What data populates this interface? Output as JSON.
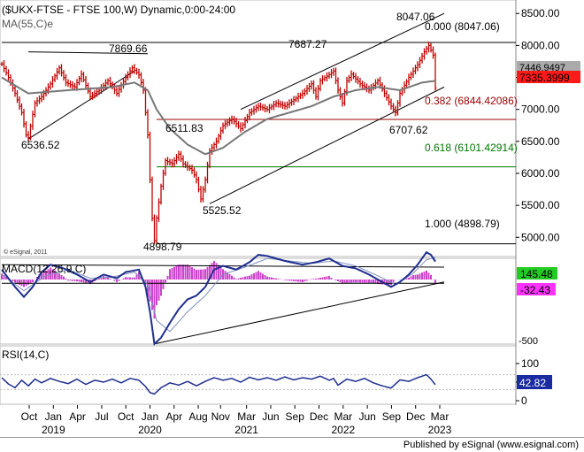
{
  "colors": {
    "price": "#c00000",
    "ma": "#777777",
    "macd": "#1f2f8f",
    "signal": "#7f8fbf",
    "hist": "#cc44cc",
    "rsi": "#1f2f8f",
    "fib_red": "#990000",
    "fib_green": "#007700",
    "trend": "#000000",
    "label_price_bg": "#ff1a1a",
    "label_macd_bg": "#22cc22",
    "label_hist_bg": "#ff33ff",
    "label_rsi_bg": "#1a2aa0",
    "label_ma_bg": "#aaaaaa"
  },
  "chart_data": [
    {
      "type": "candlestick",
      "title": "($UKX-FTSE - FTSE 100,W) Dynamic,0:00-24:00",
      "indicator_label": "MA(55,C)e",
      "watermark": "© eSignal, 2011",
      "ylim": [
        4700,
        8600
      ],
      "yticks": [
        5000,
        5500,
        6000,
        6500,
        7000,
        7500,
        8000,
        8500
      ],
      "ytick_labels": [
        "5000.00",
        "5500.00",
        "6000.00",
        "6500.00",
        "7000.00",
        "7500.00",
        "8000.00",
        "8500.00"
      ],
      "current_price": "7335.3999",
      "current_ma": "7446.9497",
      "swing_labels": [
        "7869.66",
        "6536.52",
        "7687.27",
        "8047.06",
        "6511.83",
        "5525.52",
        "4898.79",
        "6707.62"
      ],
      "fib_levels": [
        {
          "label": "0.000 (8047.06)",
          "value": 8047.06
        },
        {
          "label": "0.382 (6844.42086)",
          "value": 6844.42
        },
        {
          "label": "0.618 (6101.42914)",
          "value": 6101.43
        },
        {
          "label": "1.000 (4898.79)",
          "value": 4898.79
        }
      ],
      "anchors": [
        {
          "t": 0,
          "v": 7710
        },
        {
          "t": 3,
          "v": 7500
        },
        {
          "t": 6,
          "v": 7250
        },
        {
          "t": 9,
          "v": 6950
        },
        {
          "t": 11,
          "v": 6600
        },
        {
          "t": 12,
          "v": 6560
        },
        {
          "t": 15,
          "v": 7100
        },
        {
          "t": 18,
          "v": 7200
        },
        {
          "t": 22,
          "v": 7400
        },
        {
          "t": 26,
          "v": 7650
        },
        {
          "t": 29,
          "v": 7420
        },
        {
          "t": 33,
          "v": 7350
        },
        {
          "t": 36,
          "v": 7550
        },
        {
          "t": 40,
          "v": 7200
        },
        {
          "t": 44,
          "v": 7300
        },
        {
          "t": 48,
          "v": 7450
        },
        {
          "t": 52,
          "v": 7250
        },
        {
          "t": 56,
          "v": 7500
        },
        {
          "t": 59,
          "v": 7650
        },
        {
          "t": 62,
          "v": 7540
        },
        {
          "t": 64,
          "v": 7300
        },
        {
          "t": 66,
          "v": 6600
        },
        {
          "t": 67,
          "v": 5900
        },
        {
          "t": 68,
          "v": 5300
        },
        {
          "t": 69,
          "v": 4950
        },
        {
          "t": 70,
          "v": 5300
        },
        {
          "t": 72,
          "v": 5800
        },
        {
          "t": 74,
          "v": 6200
        },
        {
          "t": 77,
          "v": 6150
        },
        {
          "t": 80,
          "v": 6300
        },
        {
          "t": 82,
          "v": 6150
        },
        {
          "t": 86,
          "v": 6050
        },
        {
          "t": 88,
          "v": 5900
        },
        {
          "t": 90,
          "v": 5600
        },
        {
          "t": 92,
          "v": 5900
        },
        {
          "t": 94,
          "v": 6350
        },
        {
          "t": 97,
          "v": 6500
        },
        {
          "t": 100,
          "v": 6750
        },
        {
          "t": 104,
          "v": 6850
        },
        {
          "t": 108,
          "v": 6700
        },
        {
          "t": 112,
          "v": 6950
        },
        {
          "t": 116,
          "v": 7050
        },
        {
          "t": 120,
          "v": 7000
        },
        {
          "t": 124,
          "v": 7100
        },
        {
          "t": 128,
          "v": 7050
        },
        {
          "t": 132,
          "v": 7150
        },
        {
          "t": 136,
          "v": 7250
        },
        {
          "t": 140,
          "v": 7400
        },
        {
          "t": 142,
          "v": 7200
        },
        {
          "t": 144,
          "v": 7450
        },
        {
          "t": 147,
          "v": 7520
        },
        {
          "t": 150,
          "v": 7600
        },
        {
          "t": 152,
          "v": 7300
        },
        {
          "t": 154,
          "v": 7100
        },
        {
          "t": 156,
          "v": 7450
        },
        {
          "t": 158,
          "v": 7550
        },
        {
          "t": 162,
          "v": 7400
        },
        {
          "t": 166,
          "v": 7300
        },
        {
          "t": 170,
          "v": 7450
        },
        {
          "t": 173,
          "v": 7250
        },
        {
          "t": 176,
          "v": 7050
        },
        {
          "t": 178,
          "v": 6950
        },
        {
          "t": 180,
          "v": 7250
        },
        {
          "t": 184,
          "v": 7500
        },
        {
          "t": 188,
          "v": 7700
        },
        {
          "t": 191,
          "v": 7900
        },
        {
          "t": 193,
          "v": 8000
        },
        {
          "t": 195,
          "v": 7850
        },
        {
          "t": 196,
          "v": 7335
        }
      ],
      "ma_points": [
        {
          "t": 0,
          "v": 7500
        },
        {
          "t": 12,
          "v": 7250
        },
        {
          "t": 30,
          "v": 7300
        },
        {
          "t": 50,
          "v": 7350
        },
        {
          "t": 60,
          "v": 7420
        },
        {
          "t": 66,
          "v": 7300
        },
        {
          "t": 70,
          "v": 7000
        },
        {
          "t": 76,
          "v": 6700
        },
        {
          "t": 84,
          "v": 6450
        },
        {
          "t": 92,
          "v": 6300
        },
        {
          "t": 100,
          "v": 6400
        },
        {
          "t": 110,
          "v": 6650
        },
        {
          "t": 120,
          "v": 6850
        },
        {
          "t": 130,
          "v": 6950
        },
        {
          "t": 140,
          "v": 7050
        },
        {
          "t": 150,
          "v": 7200
        },
        {
          "t": 160,
          "v": 7300
        },
        {
          "t": 170,
          "v": 7350
        },
        {
          "t": 180,
          "v": 7300
        },
        {
          "t": 190,
          "v": 7420
        },
        {
          "t": 196,
          "v": 7447
        }
      ],
      "trendlines": [
        {
          "t1": 12,
          "v1": 6536.52,
          "t2": 60,
          "v2": 7600
        },
        {
          "t1": 12,
          "v1": 7900,
          "t2": 66,
          "v2": 7870
        },
        {
          "t1": 94,
          "v1": 5525,
          "t2": 200,
          "v2": 7350
        },
        {
          "t1": 108,
          "v1": 7000,
          "t2": 200,
          "v2": 8500
        },
        {
          "t1": 0,
          "v1": 8047.06,
          "t2": 200,
          "v2": 8047.06
        }
      ]
    },
    {
      "type": "line",
      "title": "MACD(12,26,9,C)",
      "current_macd": "145.48",
      "current_hist": "-32.43",
      "ytick_labels": [
        "-500"
      ],
      "macd_points": [
        {
          "t": 0,
          "v": 80
        },
        {
          "t": 6,
          "v": -60
        },
        {
          "t": 10,
          "v": -140
        },
        {
          "t": 14,
          "v": -60
        },
        {
          "t": 18,
          "v": 60
        },
        {
          "t": 22,
          "v": 120
        },
        {
          "t": 28,
          "v": 90
        },
        {
          "t": 34,
          "v": 40
        },
        {
          "t": 40,
          "v": -20
        },
        {
          "t": 46,
          "v": 40
        },
        {
          "t": 52,
          "v": 10
        },
        {
          "t": 56,
          "v": 60
        },
        {
          "t": 62,
          "v": 80
        },
        {
          "t": 65,
          "v": -60
        },
        {
          "t": 67,
          "v": -260
        },
        {
          "t": 69,
          "v": -520
        },
        {
          "t": 72,
          "v": -470
        },
        {
          "t": 76,
          "v": -350
        },
        {
          "t": 80,
          "v": -240
        },
        {
          "t": 84,
          "v": -160
        },
        {
          "t": 88,
          "v": -130
        },
        {
          "t": 92,
          "v": -60
        },
        {
          "t": 96,
          "v": 80
        },
        {
          "t": 100,
          "v": 110
        },
        {
          "t": 106,
          "v": 80
        },
        {
          "t": 112,
          "v": 140
        },
        {
          "t": 116,
          "v": 200
        },
        {
          "t": 120,
          "v": 190
        },
        {
          "t": 128,
          "v": 150
        },
        {
          "t": 136,
          "v": 120
        },
        {
          "t": 142,
          "v": 140
        },
        {
          "t": 148,
          "v": 170
        },
        {
          "t": 154,
          "v": 110
        },
        {
          "t": 160,
          "v": 90
        },
        {
          "t": 166,
          "v": 40
        },
        {
          "t": 172,
          "v": -20
        },
        {
          "t": 176,
          "v": -60
        },
        {
          "t": 180,
          "v": -20
        },
        {
          "t": 184,
          "v": 40
        },
        {
          "t": 188,
          "v": 120
        },
        {
          "t": 192,
          "v": 220
        },
        {
          "t": 194,
          "v": 200
        },
        {
          "t": 196,
          "v": 145
        }
      ],
      "signal_points": [
        {
          "t": 0,
          "v": 40
        },
        {
          "t": 10,
          "v": -90
        },
        {
          "t": 20,
          "v": 30
        },
        {
          "t": 30,
          "v": 80
        },
        {
          "t": 40,
          "v": 10
        },
        {
          "t": 50,
          "v": 20
        },
        {
          "t": 60,
          "v": 60
        },
        {
          "t": 66,
          "v": -40
        },
        {
          "t": 70,
          "v": -330
        },
        {
          "t": 76,
          "v": -420
        },
        {
          "t": 84,
          "v": -260
        },
        {
          "t": 92,
          "v": -130
        },
        {
          "t": 100,
          "v": 40
        },
        {
          "t": 110,
          "v": 100
        },
        {
          "t": 120,
          "v": 170
        },
        {
          "t": 130,
          "v": 150
        },
        {
          "t": 140,
          "v": 130
        },
        {
          "t": 150,
          "v": 150
        },
        {
          "t": 160,
          "v": 110
        },
        {
          "t": 170,
          "v": 30
        },
        {
          "t": 178,
          "v": -40
        },
        {
          "t": 186,
          "v": 50
        },
        {
          "t": 192,
          "v": 160
        },
        {
          "t": 196,
          "v": 178
        }
      ],
      "trendlines": [
        {
          "t1": 0,
          "v1": 120,
          "t2": 200,
          "v2": 100
        },
        {
          "t1": 69,
          "v1": -520,
          "t2": 200,
          "v2": -20
        },
        {
          "t1": 0,
          "v1": -30,
          "t2": 200,
          "v2": -30
        }
      ]
    },
    {
      "type": "line",
      "title": "RSI(14,C)",
      "current_rsi": "42.82",
      "ylim": [
        0,
        100
      ],
      "yticks": [
        0,
        50,
        100
      ],
      "ytick_labels": [
        "0",
        "50",
        "100"
      ],
      "rsi_points": [
        {
          "t": 0,
          "v": 62
        },
        {
          "t": 3,
          "v": 45
        },
        {
          "t": 6,
          "v": 35
        },
        {
          "t": 9,
          "v": 55
        },
        {
          "t": 12,
          "v": 40
        },
        {
          "t": 15,
          "v": 58
        },
        {
          "t": 18,
          "v": 48
        },
        {
          "t": 22,
          "v": 60
        },
        {
          "t": 26,
          "v": 52
        },
        {
          "t": 30,
          "v": 46
        },
        {
          "t": 34,
          "v": 58
        },
        {
          "t": 38,
          "v": 44
        },
        {
          "t": 42,
          "v": 55
        },
        {
          "t": 46,
          "v": 50
        },
        {
          "t": 50,
          "v": 58
        },
        {
          "t": 54,
          "v": 48
        },
        {
          "t": 58,
          "v": 60
        },
        {
          "t": 62,
          "v": 55
        },
        {
          "t": 65,
          "v": 38
        },
        {
          "t": 67,
          "v": 22
        },
        {
          "t": 69,
          "v": 18
        },
        {
          "t": 72,
          "v": 35
        },
        {
          "t": 76,
          "v": 48
        },
        {
          "t": 80,
          "v": 42
        },
        {
          "t": 84,
          "v": 52
        },
        {
          "t": 88,
          "v": 40
        },
        {
          "t": 92,
          "v": 52
        },
        {
          "t": 96,
          "v": 62
        },
        {
          "t": 100,
          "v": 55
        },
        {
          "t": 104,
          "v": 60
        },
        {
          "t": 108,
          "v": 50
        },
        {
          "t": 112,
          "v": 63
        },
        {
          "t": 116,
          "v": 56
        },
        {
          "t": 120,
          "v": 62
        },
        {
          "t": 124,
          "v": 55
        },
        {
          "t": 128,
          "v": 64
        },
        {
          "t": 132,
          "v": 56
        },
        {
          "t": 136,
          "v": 62
        },
        {
          "t": 140,
          "v": 58
        },
        {
          "t": 144,
          "v": 66
        },
        {
          "t": 148,
          "v": 55
        },
        {
          "t": 150,
          "v": 60
        },
        {
          "t": 152,
          "v": 42
        },
        {
          "t": 156,
          "v": 58
        },
        {
          "t": 160,
          "v": 52
        },
        {
          "t": 164,
          "v": 60
        },
        {
          "t": 168,
          "v": 48
        },
        {
          "t": 172,
          "v": 40
        },
        {
          "t": 176,
          "v": 34
        },
        {
          "t": 180,
          "v": 56
        },
        {
          "t": 184,
          "v": 52
        },
        {
          "t": 188,
          "v": 62
        },
        {
          "t": 192,
          "v": 70
        },
        {
          "t": 194,
          "v": 58
        },
        {
          "t": 196,
          "v": 43
        }
      ]
    }
  ],
  "x_axis": {
    "month_ticks": [
      {
        "t": 7,
        "label": "Oct"
      },
      {
        "t": 20,
        "label": "Jan"
      },
      {
        "t": 33,
        "label": "Apr"
      },
      {
        "t": 46,
        "label": "Jul"
      },
      {
        "t": 59,
        "label": "Oct"
      },
      {
        "t": 72,
        "label": "Jan"
      },
      {
        "t": 85,
        "label": "Apr"
      },
      {
        "t": 98,
        "label": "Aug"
      },
      {
        "t": 110,
        "label": "Nov"
      },
      {
        "t": 124,
        "label": "Mar"
      },
      {
        "t": 137,
        "label": "Jun"
      },
      {
        "t": 150,
        "label": "Sep"
      },
      {
        "t": 163,
        "label": "Dec"
      },
      {
        "t": 176,
        "label": "Mar"
      },
      {
        "t": 189,
        "label": "Jun"
      },
      {
        "t": 202,
        "label": "Sep"
      },
      {
        "t": 215,
        "label": "Dec"
      },
      {
        "t": 228,
        "label": "Mar"
      }
    ],
    "year_ticks": [
      {
        "t": 20,
        "label": "2019"
      },
      {
        "t": 72,
        "label": "2020"
      },
      {
        "t": 124,
        "label": "2021"
      },
      {
        "t": 176,
        "label": "2022"
      },
      {
        "t": 228,
        "label": "2023"
      }
    ]
  },
  "footer": {
    "text": "Published by eSignal (www.esignal.com)"
  }
}
